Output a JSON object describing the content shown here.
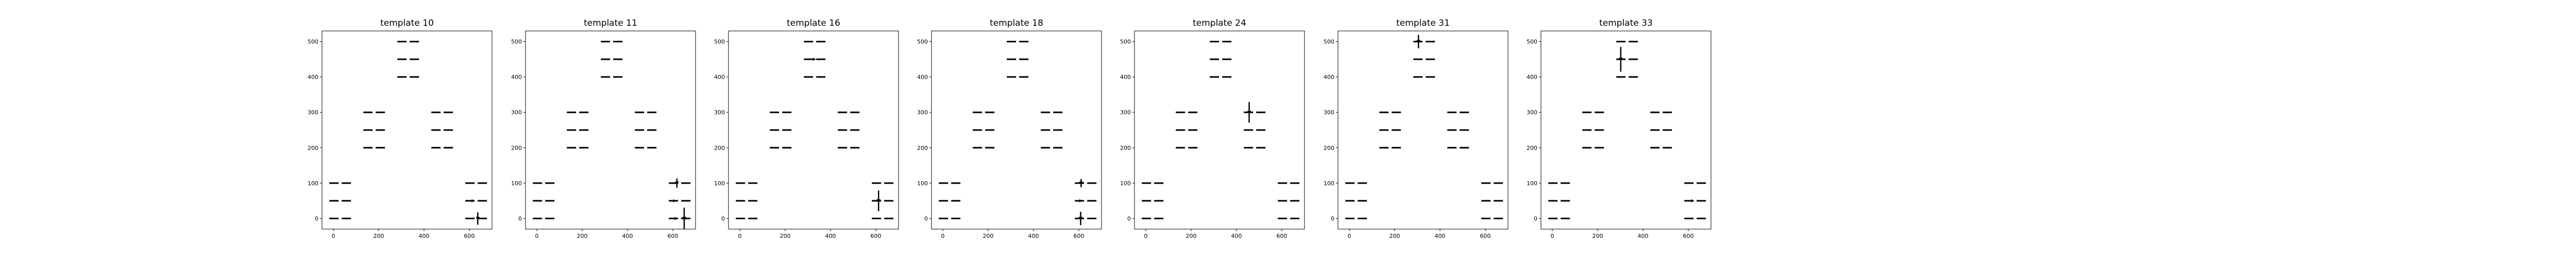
{
  "chart_data": [
    {
      "type": "scatter",
      "title": "template 10",
      "xlim": [
        -50,
        700
      ],
      "ylim": [
        -30,
        530
      ],
      "xticks": [
        0,
        200,
        400,
        600
      ],
      "yticks": [
        0,
        100,
        200,
        300,
        400,
        500
      ],
      "pairs": [
        {
          "x": 30,
          "y": 0
        },
        {
          "x": 30,
          "y": 50
        },
        {
          "x": 30,
          "y": 100
        },
        {
          "x": 180,
          "y": 200
        },
        {
          "x": 180,
          "y": 250
        },
        {
          "x": 180,
          "y": 300
        },
        {
          "x": 330,
          "y": 400
        },
        {
          "x": 330,
          "y": 450
        },
        {
          "x": 330,
          "y": 500
        },
        {
          "x": 480,
          "y": 200
        },
        {
          "x": 480,
          "y": 250
        },
        {
          "x": 480,
          "y": 300
        },
        {
          "x": 630,
          "y": 0
        },
        {
          "x": 630,
          "y": 50
        },
        {
          "x": 630,
          "y": 100
        }
      ],
      "markers": [
        {
          "x": 637,
          "y": 0,
          "h": 24,
          "off": -4
        },
        {
          "x": 626,
          "y": 50,
          "h": 0,
          "off": 7
        }
      ]
    },
    {
      "type": "scatter",
      "title": "template 11",
      "xlim": [
        -50,
        700
      ],
      "ylim": [
        -30,
        530
      ],
      "xticks": [
        0,
        200,
        400,
        600
      ],
      "yticks": [
        0,
        100,
        200,
        300,
        400,
        500
      ],
      "pairs": [
        {
          "x": 30,
          "y": 0
        },
        {
          "x": 30,
          "y": 50
        },
        {
          "x": 30,
          "y": 100
        },
        {
          "x": 180,
          "y": 200
        },
        {
          "x": 180,
          "y": 250
        },
        {
          "x": 180,
          "y": 300
        },
        {
          "x": 330,
          "y": 400
        },
        {
          "x": 330,
          "y": 450
        },
        {
          "x": 330,
          "y": 500
        },
        {
          "x": 480,
          "y": 200
        },
        {
          "x": 480,
          "y": 250
        },
        {
          "x": 480,
          "y": 300
        },
        {
          "x": 630,
          "y": 0
        },
        {
          "x": 630,
          "y": 50
        },
        {
          "x": 630,
          "y": 100
        }
      ],
      "markers": [
        {
          "x": 650,
          "y": 0,
          "h": 42,
          "off": 0
        },
        {
          "x": 618,
          "y": 100,
          "h": 18,
          "off": 0
        },
        {
          "x": 620,
          "y": 50,
          "h": 0,
          "off": 8
        },
        {
          "x": 622,
          "y": 0,
          "h": 0,
          "off": 6
        }
      ]
    },
    {
      "type": "scatter",
      "title": "template 16",
      "xlim": [
        -50,
        700
      ],
      "ylim": [
        -30,
        530
      ],
      "xticks": [
        0,
        200,
        400,
        600
      ],
      "yticks": [
        0,
        100,
        200,
        300,
        400,
        500
      ],
      "pairs": [
        {
          "x": 30,
          "y": 0
        },
        {
          "x": 30,
          "y": 50
        },
        {
          "x": 30,
          "y": 100
        },
        {
          "x": 180,
          "y": 200
        },
        {
          "x": 180,
          "y": 250
        },
        {
          "x": 180,
          "y": 300
        },
        {
          "x": 330,
          "y": 400
        },
        {
          "x": 330,
          "y": 450
        },
        {
          "x": 330,
          "y": 500
        },
        {
          "x": 480,
          "y": 200
        },
        {
          "x": 480,
          "y": 250
        },
        {
          "x": 480,
          "y": 300
        },
        {
          "x": 630,
          "y": 0
        },
        {
          "x": 630,
          "y": 50
        },
        {
          "x": 630,
          "y": 100
        }
      ],
      "markers": [
        {
          "x": 612,
          "y": 50,
          "h": 40,
          "off": 0
        },
        {
          "x": 334,
          "y": 450,
          "h": 0,
          "off": 5
        }
      ]
    },
    {
      "type": "scatter",
      "title": "template 18",
      "xlim": [
        -50,
        700
      ],
      "ylim": [
        -30,
        530
      ],
      "xticks": [
        0,
        200,
        400,
        600
      ],
      "yticks": [
        0,
        100,
        200,
        300,
        400,
        500
      ],
      "pairs": [
        {
          "x": 30,
          "y": 0
        },
        {
          "x": 30,
          "y": 50
        },
        {
          "x": 30,
          "y": 100
        },
        {
          "x": 180,
          "y": 200
        },
        {
          "x": 180,
          "y": 250
        },
        {
          "x": 180,
          "y": 300
        },
        {
          "x": 330,
          "y": 400
        },
        {
          "x": 330,
          "y": 450
        },
        {
          "x": 330,
          "y": 500
        },
        {
          "x": 480,
          "y": 200
        },
        {
          "x": 480,
          "y": 250
        },
        {
          "x": 480,
          "y": 300
        },
        {
          "x": 630,
          "y": 0
        },
        {
          "x": 630,
          "y": 50
        },
        {
          "x": 630,
          "y": 100
        }
      ],
      "markers": [
        {
          "x": 608,
          "y": 0,
          "h": 26,
          "off": 0
        },
        {
          "x": 610,
          "y": 100,
          "h": 16,
          "off": 0
        },
        {
          "x": 618,
          "y": 50,
          "h": 0,
          "off": 7
        }
      ]
    },
    {
      "type": "scatter",
      "title": "template 24",
      "xlim": [
        -50,
        700
      ],
      "ylim": [
        -30,
        530
      ],
      "xticks": [
        0,
        200,
        400,
        600
      ],
      "yticks": [
        0,
        100,
        200,
        300,
        400,
        500
      ],
      "pairs": [
        {
          "x": 30,
          "y": 0
        },
        {
          "x": 30,
          "y": 50
        },
        {
          "x": 30,
          "y": 100
        },
        {
          "x": 180,
          "y": 200
        },
        {
          "x": 180,
          "y": 250
        },
        {
          "x": 180,
          "y": 300
        },
        {
          "x": 330,
          "y": 400
        },
        {
          "x": 330,
          "y": 450
        },
        {
          "x": 330,
          "y": 500
        },
        {
          "x": 480,
          "y": 200
        },
        {
          "x": 480,
          "y": 250
        },
        {
          "x": 480,
          "y": 300
        },
        {
          "x": 630,
          "y": 0
        },
        {
          "x": 630,
          "y": 50
        },
        {
          "x": 630,
          "y": 100
        }
      ],
      "markers": [
        {
          "x": 456,
          "y": 300,
          "h": 40,
          "off": 0
        }
      ]
    },
    {
      "type": "scatter",
      "title": "template 31",
      "xlim": [
        -50,
        700
      ],
      "ylim": [
        -30,
        530
      ],
      "xticks": [
        0,
        200,
        400,
        600
      ],
      "yticks": [
        0,
        100,
        200,
        300,
        400,
        500
      ],
      "pairs": [
        {
          "x": 30,
          "y": 0
        },
        {
          "x": 30,
          "y": 50
        },
        {
          "x": 30,
          "y": 100
        },
        {
          "x": 180,
          "y": 200
        },
        {
          "x": 180,
          "y": 250
        },
        {
          "x": 180,
          "y": 300
        },
        {
          "x": 330,
          "y": 400
        },
        {
          "x": 330,
          "y": 450
        },
        {
          "x": 330,
          "y": 500
        },
        {
          "x": 480,
          "y": 200
        },
        {
          "x": 480,
          "y": 250
        },
        {
          "x": 480,
          "y": 300
        },
        {
          "x": 630,
          "y": 0
        },
        {
          "x": 630,
          "y": 50
        },
        {
          "x": 630,
          "y": 100
        }
      ],
      "markers": [
        {
          "x": 305,
          "y": 500,
          "h": 26,
          "off": 0
        }
      ]
    },
    {
      "type": "scatter",
      "title": "template 33",
      "xlim": [
        -50,
        700
      ],
      "ylim": [
        -30,
        530
      ],
      "xticks": [
        0,
        200,
        400,
        600
      ],
      "yticks": [
        0,
        100,
        200,
        300,
        400,
        500
      ],
      "pairs": [
        {
          "x": 30,
          "y": 0
        },
        {
          "x": 30,
          "y": 50
        },
        {
          "x": 30,
          "y": 100
        },
        {
          "x": 180,
          "y": 200
        },
        {
          "x": 180,
          "y": 250
        },
        {
          "x": 180,
          "y": 300
        },
        {
          "x": 330,
          "y": 400
        },
        {
          "x": 330,
          "y": 450
        },
        {
          "x": 330,
          "y": 500
        },
        {
          "x": 480,
          "y": 200
        },
        {
          "x": 480,
          "y": 250
        },
        {
          "x": 480,
          "y": 300
        },
        {
          "x": 630,
          "y": 0
        },
        {
          "x": 630,
          "y": 50
        },
        {
          "x": 630,
          "y": 100
        }
      ],
      "markers": [
        {
          "x": 302,
          "y": 450,
          "h": 48,
          "off": 0
        },
        {
          "x": 626,
          "y": 50,
          "h": 0,
          "off": 6
        }
      ]
    }
  ]
}
